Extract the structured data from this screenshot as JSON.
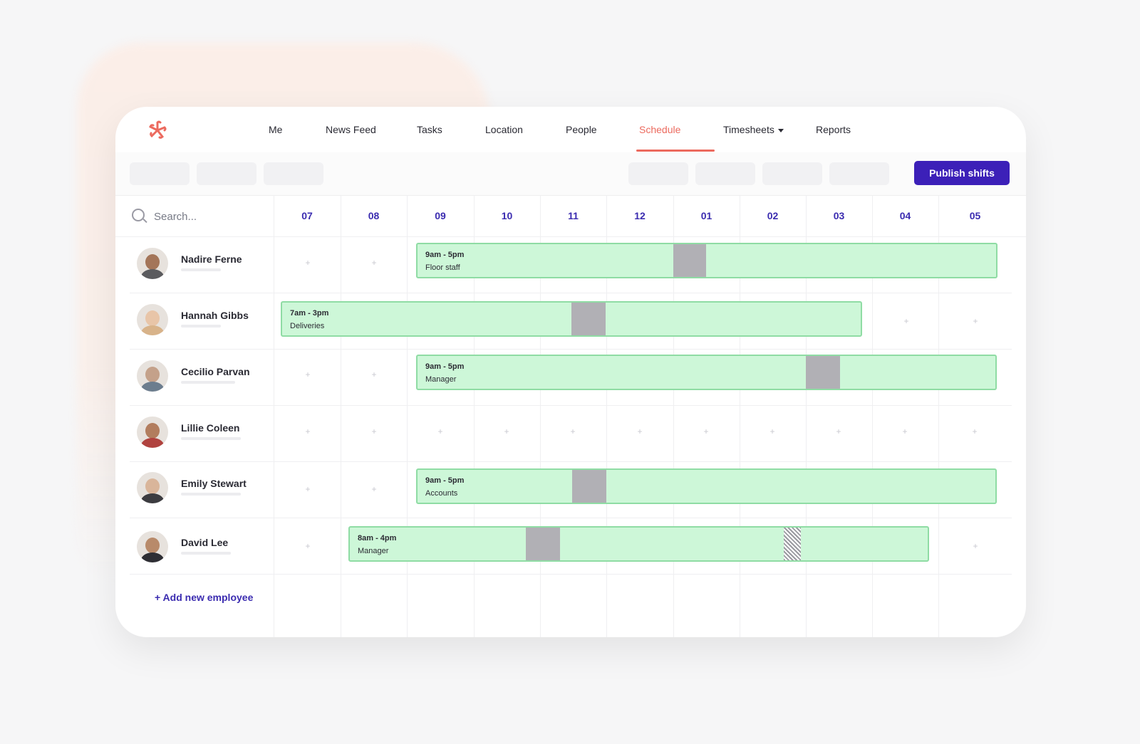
{
  "nav": {
    "logo_icon": "asterisk-logo-icon",
    "items": [
      {
        "label": "Me"
      },
      {
        "label": "News Feed"
      },
      {
        "label": "Tasks"
      },
      {
        "label": "Location"
      },
      {
        "label": "People"
      },
      {
        "label": "Schedule",
        "active": true
      },
      {
        "label": "Timesheets",
        "dropdown": true
      },
      {
        "label": "Reports"
      }
    ]
  },
  "toolbar": {
    "publish_label": "Publish shifts"
  },
  "search": {
    "placeholder": "Search..."
  },
  "hours": [
    "07",
    "08",
    "09",
    "10",
    "11",
    "12",
    "01",
    "02",
    "03",
    "04",
    "05"
  ],
  "employees": [
    {
      "name": "Nadire Ferne",
      "shift": {
        "time": "9am - 5pm",
        "role": "Floor staff"
      }
    },
    {
      "name": "Hannah Gibbs",
      "shift": {
        "time": "7am - 3pm",
        "role": "Deliveries"
      }
    },
    {
      "name": "Cecilio Parvan",
      "shift": {
        "time": "9am - 5pm",
        "role": "Manager"
      }
    },
    {
      "name": "Lillie Coleen",
      "shift": null
    },
    {
      "name": "Emily Stewart",
      "shift": {
        "time": "9am - 5pm",
        "role": "Accounts"
      }
    },
    {
      "name": "David Lee",
      "shift": {
        "time": "8am - 4pm",
        "role": "Manager"
      }
    }
  ],
  "add_employee_label": "+ Add new employee",
  "colors": {
    "accent": "#ec6a5e",
    "primary": "#3c20b8",
    "shift_fill": "#cdf7d8",
    "shift_border": "#8fdca4",
    "break": "#b1b0b5"
  }
}
